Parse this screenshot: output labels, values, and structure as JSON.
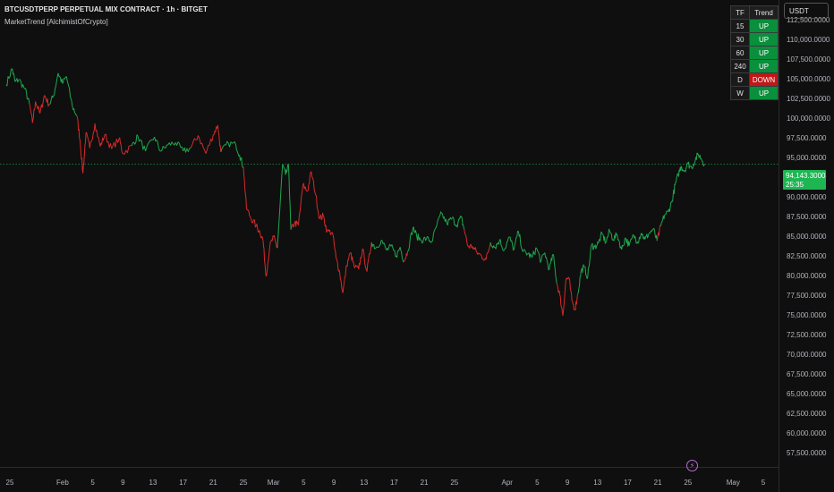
{
  "header": {
    "title": "BTCUSDTPERP PERPETUAL MIX CONTRACT · 1h · BITGET",
    "indicator": "MarketTrend [AlchimistOfCrypto]"
  },
  "currency_button": "USDT",
  "trend_table": {
    "headers": [
      "TF",
      "Trend"
    ],
    "rows": [
      {
        "tf": "15",
        "trend": "UP"
      },
      {
        "tf": "30",
        "trend": "UP"
      },
      {
        "tf": "60",
        "trend": "UP"
      },
      {
        "tf": "240",
        "trend": "UP"
      },
      {
        "tf": "D",
        "trend": "DOWN"
      },
      {
        "tf": "W",
        "trend": "UP"
      }
    ]
  },
  "price_badge": {
    "price": "94,143.3000",
    "countdown": "25:35"
  },
  "colors": {
    "up": "#1fa64f",
    "down": "#d52a2a",
    "background": "#0f0f0f",
    "badge": "#1eb553"
  },
  "icons": [
    "lightning-icon"
  ],
  "chart_data": {
    "type": "line",
    "title": "",
    "xlabel": "",
    "ylabel": "",
    "ylim": [
      56500,
      116000
    ],
    "current_price": 94143.3,
    "y_ticks": [
      57500,
      60000,
      62500,
      65000,
      67500,
      70000,
      72500,
      75000,
      77500,
      80000,
      82500,
      85000,
      87500,
      90000,
      92500,
      95000,
      97500,
      100000,
      102500,
      105000,
      107500,
      110000,
      112500
    ],
    "y_tick_labels": [
      "57,500.0000",
      "60,000.0000",
      "62,500.0000",
      "65,000.0000",
      "67,500.0000",
      "70,000.0000",
      "72,500.0000",
      "75,000.0000",
      "77,500.0000",
      "80,000.0000",
      "82,500.0000",
      "85,000.0000",
      "87,500.0000",
      "90,000.0000",
      "92,500.0000",
      "95,000.0000",
      "97,500.0000",
      "100,000.0000",
      "102,500.0000",
      "105,000.0000",
      "107,500.0000",
      "110,000.0000",
      "112,500.0000"
    ],
    "x_ticks": [
      {
        "day": 0,
        "label": "25"
      },
      {
        "day": 7,
        "label": "Feb"
      },
      {
        "day": 11,
        "label": "5"
      },
      {
        "day": 15,
        "label": "9"
      },
      {
        "day": 19,
        "label": "13"
      },
      {
        "day": 23,
        "label": "17"
      },
      {
        "day": 27,
        "label": "21"
      },
      {
        "day": 31,
        "label": "25"
      },
      {
        "day": 35,
        "label": "Mar"
      },
      {
        "day": 39,
        "label": "5"
      },
      {
        "day": 43,
        "label": "9"
      },
      {
        "day": 47,
        "label": "13"
      },
      {
        "day": 51,
        "label": "17"
      },
      {
        "day": 55,
        "label": "21"
      },
      {
        "day": 59,
        "label": "25"
      },
      {
        "day": 66,
        "label": "Apr"
      },
      {
        "day": 70,
        "label": "5"
      },
      {
        "day": 74,
        "label": "9"
      },
      {
        "day": 78,
        "label": "13"
      },
      {
        "day": 82,
        "label": "17"
      },
      {
        "day": 86,
        "label": "21"
      },
      {
        "day": 90,
        "label": "25"
      },
      {
        "day": 96,
        "label": "May"
      },
      {
        "day": 100,
        "label": "5"
      }
    ],
    "series": [
      {
        "values": [
          [
            -0.5,
            104200,
            "up"
          ],
          [
            0.3,
            106300,
            "up"
          ],
          [
            0.7,
            104600,
            "up"
          ],
          [
            1.2,
            104900,
            "up"
          ],
          [
            2.0,
            103700,
            "up"
          ],
          [
            2.6,
            101800,
            "down"
          ],
          [
            3.0,
            99400,
            "down"
          ],
          [
            3.4,
            102100,
            "down"
          ],
          [
            4.0,
            100600,
            "down"
          ],
          [
            4.6,
            102900,
            "down"
          ],
          [
            5.2,
            101700,
            "up"
          ],
          [
            5.8,
            102800,
            "up"
          ],
          [
            6.4,
            105700,
            "up"
          ],
          [
            7.0,
            104400,
            "up"
          ],
          [
            7.5,
            105300,
            "up"
          ],
          [
            8.3,
            101500,
            "up"
          ],
          [
            8.9,
            100300,
            "down"
          ],
          [
            9.3,
            97300,
            "down"
          ],
          [
            9.7,
            93000,
            "down"
          ],
          [
            10.1,
            98100,
            "down"
          ],
          [
            10.6,
            96200,
            "down"
          ],
          [
            11.3,
            99300,
            "down"
          ],
          [
            12.0,
            96400,
            "down"
          ],
          [
            12.6,
            97900,
            "down"
          ],
          [
            13.5,
            96100,
            "down"
          ],
          [
            14.5,
            97400,
            "down"
          ],
          [
            15.0,
            95500,
            "down"
          ],
          [
            16.2,
            96500,
            "up"
          ],
          [
            17.0,
            97700,
            "up"
          ],
          [
            18.0,
            95800,
            "up"
          ],
          [
            19.2,
            97600,
            "up"
          ],
          [
            20.0,
            95800,
            "up"
          ],
          [
            21.0,
            96600,
            "up"
          ],
          [
            22.0,
            96900,
            "up"
          ],
          [
            23.0,
            95800,
            "up"
          ],
          [
            24.0,
            96200,
            "down"
          ],
          [
            25.0,
            97800,
            "down"
          ],
          [
            26.0,
            95500,
            "down"
          ],
          [
            27.0,
            97900,
            "down"
          ],
          [
            27.6,
            99100,
            "down"
          ],
          [
            28.0,
            95700,
            "up"
          ],
          [
            29.0,
            96800,
            "up"
          ],
          [
            30.0,
            96600,
            "up"
          ],
          [
            30.5,
            95300,
            "up"
          ],
          [
            31.0,
            93800,
            "down"
          ],
          [
            31.4,
            88600,
            "down"
          ],
          [
            32.0,
            87300,
            "down"
          ],
          [
            32.7,
            86300,
            "down"
          ],
          [
            33.2,
            85500,
            "down"
          ],
          [
            33.6,
            84500,
            "down"
          ],
          [
            34.0,
            79900,
            "down"
          ],
          [
            34.5,
            83700,
            "down"
          ],
          [
            35.0,
            84900,
            "down"
          ],
          [
            35.5,
            83500,
            "up"
          ],
          [
            36.2,
            94100,
            "up"
          ],
          [
            36.6,
            92800,
            "up"
          ],
          [
            37.0,
            93900,
            "up"
          ],
          [
            37.3,
            85800,
            "down"
          ],
          [
            37.8,
            86700,
            "down"
          ],
          [
            38.3,
            86400,
            "down"
          ],
          [
            38.9,
            91500,
            "down"
          ],
          [
            39.5,
            90700,
            "down"
          ],
          [
            40.0,
            93200,
            "down"
          ],
          [
            40.6,
            90200,
            "down"
          ],
          [
            41.1,
            87200,
            "down"
          ],
          [
            41.6,
            87600,
            "down"
          ],
          [
            42.1,
            85600,
            "down"
          ],
          [
            42.8,
            85500,
            "down"
          ],
          [
            43.3,
            82200,
            "down"
          ],
          [
            43.7,
            80700,
            "down"
          ],
          [
            44.2,
            77800,
            "down"
          ],
          [
            44.7,
            81300,
            "down"
          ],
          [
            45.2,
            82900,
            "down"
          ],
          [
            45.7,
            81100,
            "down"
          ],
          [
            46.3,
            80800,
            "down"
          ],
          [
            46.8,
            83400,
            "down"
          ],
          [
            47.4,
            80500,
            "down"
          ],
          [
            48.0,
            84200,
            "up"
          ],
          [
            48.6,
            83500,
            "up"
          ],
          [
            49.3,
            84500,
            "up"
          ],
          [
            50.0,
            83200,
            "up"
          ],
          [
            50.6,
            83700,
            "up"
          ],
          [
            51.3,
            82500,
            "up"
          ],
          [
            51.8,
            83600,
            "up"
          ],
          [
            52.3,
            81800,
            "down"
          ],
          [
            52.8,
            83100,
            "up"
          ],
          [
            53.5,
            86100,
            "up"
          ],
          [
            54.0,
            85000,
            "up"
          ],
          [
            54.6,
            84500,
            "up"
          ],
          [
            55.3,
            84700,
            "up"
          ],
          [
            56.0,
            84300,
            "up"
          ],
          [
            56.7,
            86500,
            "up"
          ],
          [
            57.3,
            87900,
            "up"
          ],
          [
            58.0,
            86600,
            "up"
          ],
          [
            58.7,
            87300,
            "up"
          ],
          [
            59.3,
            86400,
            "up"
          ],
          [
            59.9,
            87400,
            "up"
          ],
          [
            60.3,
            85900,
            "down"
          ],
          [
            60.8,
            83700,
            "down"
          ],
          [
            61.4,
            83700,
            "down"
          ],
          [
            62.0,
            82900,
            "down"
          ],
          [
            62.6,
            82500,
            "down"
          ],
          [
            63.2,
            82000,
            "down"
          ],
          [
            63.8,
            84200,
            "up"
          ],
          [
            64.4,
            83600,
            "up"
          ],
          [
            65.0,
            84500,
            "up"
          ],
          [
            65.6,
            83200,
            "up"
          ],
          [
            66.3,
            84900,
            "up"
          ],
          [
            66.9,
            83300,
            "up"
          ],
          [
            67.5,
            85600,
            "up"
          ],
          [
            68.1,
            83000,
            "up"
          ],
          [
            68.7,
            82800,
            "up"
          ],
          [
            69.3,
            82300,
            "up"
          ],
          [
            69.9,
            83500,
            "up"
          ],
          [
            70.5,
            81800,
            "up"
          ],
          [
            71.0,
            82900,
            "up"
          ],
          [
            71.6,
            80800,
            "up"
          ],
          [
            72.1,
            82700,
            "up"
          ],
          [
            72.6,
            79000,
            "down"
          ],
          [
            73.0,
            77500,
            "down"
          ],
          [
            73.4,
            74900,
            "down"
          ],
          [
            73.8,
            79500,
            "down"
          ],
          [
            74.2,
            79700,
            "down"
          ],
          [
            74.6,
            76800,
            "down"
          ],
          [
            75.0,
            75700,
            "down"
          ],
          [
            75.4,
            77700,
            "up"
          ],
          [
            75.8,
            80500,
            "up"
          ],
          [
            76.2,
            81100,
            "up"
          ],
          [
            76.7,
            79800,
            "up"
          ],
          [
            77.2,
            83900,
            "up"
          ],
          [
            77.6,
            83600,
            "up"
          ],
          [
            78.1,
            84100,
            "up"
          ],
          [
            78.6,
            85300,
            "up"
          ],
          [
            79.1,
            84200,
            "up"
          ],
          [
            79.6,
            85700,
            "up"
          ],
          [
            80.1,
            84600,
            "up"
          ],
          [
            80.6,
            85200,
            "up"
          ],
          [
            81.2,
            83300,
            "up"
          ],
          [
            81.7,
            84800,
            "up"
          ],
          [
            82.2,
            83800,
            "up"
          ],
          [
            82.8,
            85100,
            "up"
          ],
          [
            83.3,
            84300,
            "up"
          ],
          [
            83.8,
            85400,
            "up"
          ],
          [
            84.3,
            84600,
            "up"
          ],
          [
            84.8,
            85300,
            "up"
          ],
          [
            85.4,
            85900,
            "up"
          ],
          [
            85.9,
            84400,
            "down"
          ],
          [
            86.4,
            86300,
            "up"
          ],
          [
            86.9,
            87700,
            "up"
          ],
          [
            87.4,
            88100,
            "up"
          ],
          [
            87.9,
            89500,
            "up"
          ],
          [
            88.3,
            91500,
            "up"
          ],
          [
            88.7,
            92800,
            "up"
          ],
          [
            89.1,
            93900,
            "up"
          ],
          [
            89.5,
            93300,
            "up"
          ],
          [
            90.0,
            94200,
            "up"
          ],
          [
            90.5,
            93700,
            "up"
          ],
          [
            91.0,
            94800,
            "up"
          ],
          [
            91.4,
            95400,
            "up"
          ],
          [
            91.8,
            94800,
            "up"
          ],
          [
            92.2,
            94143.3,
            "up"
          ]
        ]
      }
    ]
  }
}
